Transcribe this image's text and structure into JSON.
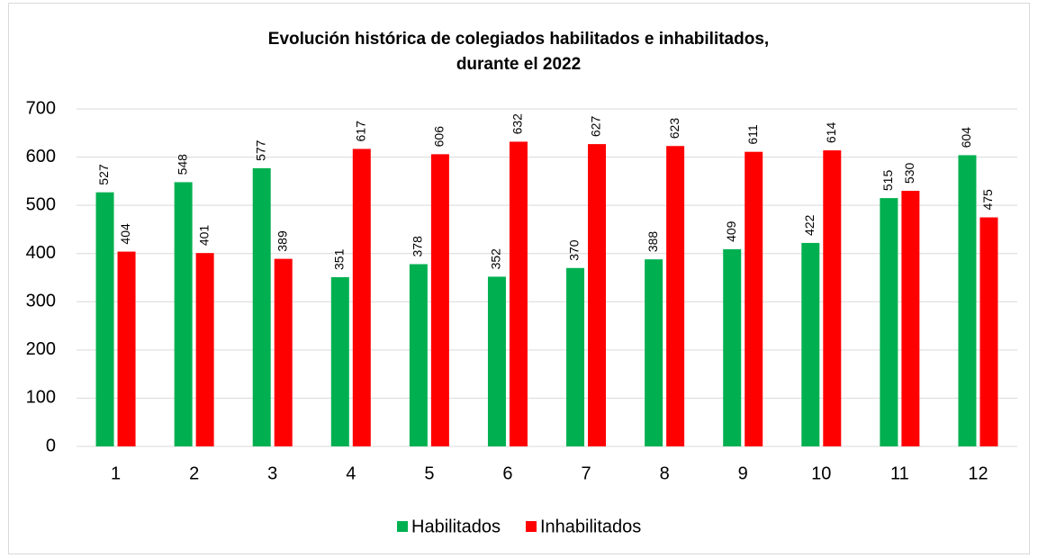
{
  "chart_data": {
    "type": "bar",
    "title": [
      "Evolución histórica de colegiados habilitados e inhabilitados,",
      "durante el 2022"
    ],
    "categories": [
      "1",
      "2",
      "3",
      "4",
      "5",
      "6",
      "7",
      "8",
      "9",
      "10",
      "11",
      "12"
    ],
    "series": [
      {
        "name": "Habilitados",
        "color": "#00b050",
        "values": [
          527,
          548,
          577,
          351,
          378,
          352,
          370,
          388,
          409,
          422,
          515,
          604
        ]
      },
      {
        "name": "Inhabilitados",
        "color": "#ff0000",
        "values": [
          404,
          401,
          389,
          617,
          606,
          632,
          627,
          623,
          611,
          614,
          530,
          475
        ]
      }
    ],
    "ylim": [
      0,
      700
    ],
    "yticks": [
      0,
      100,
      200,
      300,
      400,
      500,
      600,
      700
    ],
    "grid": true,
    "legend": "bottom"
  }
}
